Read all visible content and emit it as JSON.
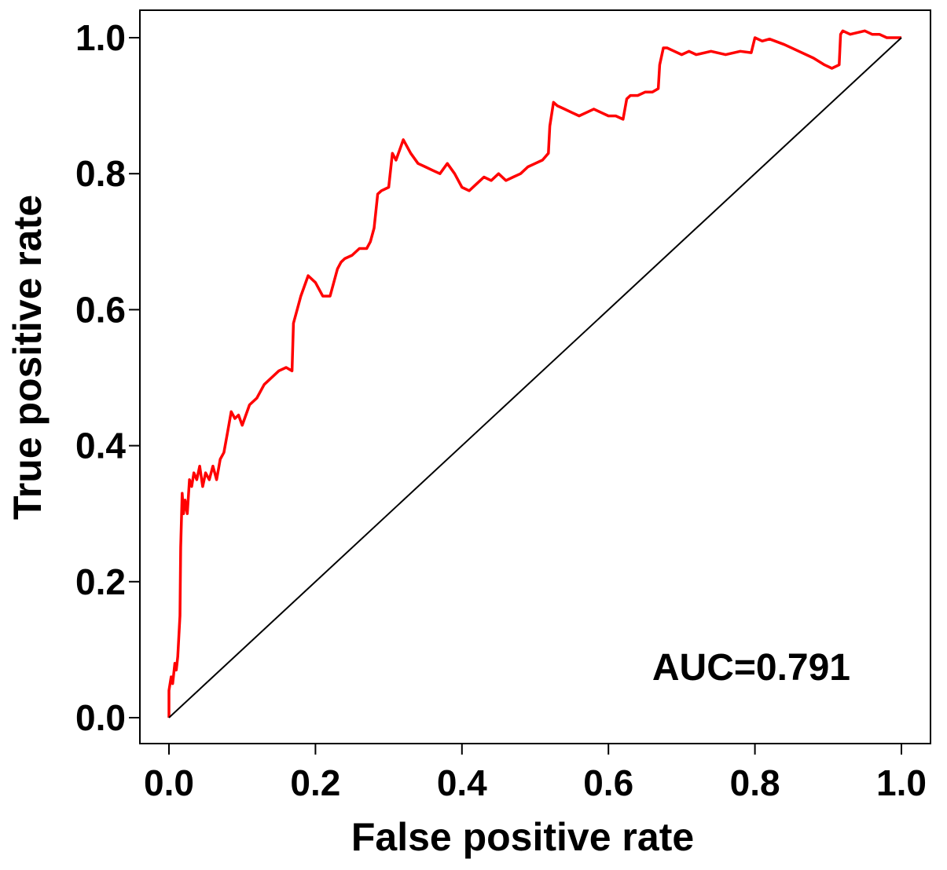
{
  "chart_data": {
    "type": "line",
    "title": "",
    "xlabel": "False positive rate",
    "ylabel": "True positive rate",
    "xlim": [
      0,
      1
    ],
    "ylim": [
      0,
      1
    ],
    "x_ticks": [
      "0.0",
      "0.2",
      "0.4",
      "0.6",
      "0.8",
      "1.0"
    ],
    "y_ticks": [
      "0.0",
      "0.2",
      "0.4",
      "0.6",
      "0.8",
      "1.0"
    ],
    "grid": false,
    "legend": "none",
    "annotation": "AUC=0.791",
    "series": [
      {
        "color": "#ff0000",
        "x": [
          0.0,
          0.0,
          0.003,
          0.005,
          0.008,
          0.01,
          0.012,
          0.015,
          0.016,
          0.018,
          0.02,
          0.022,
          0.025,
          0.028,
          0.031,
          0.034,
          0.038,
          0.042,
          0.046,
          0.05,
          0.055,
          0.06,
          0.065,
          0.07,
          0.075,
          0.08,
          0.085,
          0.09,
          0.095,
          0.1,
          0.11,
          0.12,
          0.13,
          0.14,
          0.15,
          0.16,
          0.168,
          0.17,
          0.175,
          0.18,
          0.19,
          0.2,
          0.21,
          0.22,
          0.225,
          0.23,
          0.235,
          0.24,
          0.25,
          0.26,
          0.27,
          0.275,
          0.28,
          0.285,
          0.29,
          0.3,
          0.305,
          0.31,
          0.32,
          0.33,
          0.34,
          0.35,
          0.36,
          0.37,
          0.38,
          0.39,
          0.4,
          0.41,
          0.42,
          0.43,
          0.44,
          0.45,
          0.46,
          0.47,
          0.48,
          0.49,
          0.5,
          0.51,
          0.518,
          0.52,
          0.525,
          0.53,
          0.54,
          0.55,
          0.56,
          0.57,
          0.58,
          0.59,
          0.6,
          0.61,
          0.62,
          0.625,
          0.63,
          0.64,
          0.65,
          0.66,
          0.668,
          0.67,
          0.675,
          0.68,
          0.69,
          0.7,
          0.71,
          0.72,
          0.74,
          0.76,
          0.78,
          0.795,
          0.8,
          0.81,
          0.82,
          0.84,
          0.86,
          0.88,
          0.895,
          0.905,
          0.915,
          0.917,
          0.92,
          0.93,
          0.95,
          0.96,
          0.97,
          0.98,
          0.99,
          1.0
        ],
        "y": [
          0.0,
          0.04,
          0.06,
          0.05,
          0.08,
          0.07,
          0.09,
          0.15,
          0.25,
          0.33,
          0.3,
          0.32,
          0.3,
          0.35,
          0.34,
          0.36,
          0.35,
          0.37,
          0.34,
          0.36,
          0.35,
          0.37,
          0.35,
          0.38,
          0.39,
          0.42,
          0.45,
          0.44,
          0.445,
          0.43,
          0.46,
          0.47,
          0.49,
          0.5,
          0.51,
          0.515,
          0.51,
          0.58,
          0.6,
          0.62,
          0.65,
          0.64,
          0.62,
          0.62,
          0.64,
          0.66,
          0.67,
          0.675,
          0.68,
          0.69,
          0.69,
          0.7,
          0.72,
          0.77,
          0.775,
          0.78,
          0.83,
          0.82,
          0.85,
          0.83,
          0.815,
          0.81,
          0.805,
          0.8,
          0.815,
          0.8,
          0.78,
          0.775,
          0.785,
          0.795,
          0.79,
          0.8,
          0.79,
          0.795,
          0.8,
          0.81,
          0.815,
          0.82,
          0.83,
          0.87,
          0.905,
          0.9,
          0.895,
          0.89,
          0.885,
          0.89,
          0.895,
          0.89,
          0.885,
          0.885,
          0.88,
          0.91,
          0.915,
          0.915,
          0.92,
          0.92,
          0.925,
          0.96,
          0.985,
          0.985,
          0.98,
          0.975,
          0.98,
          0.975,
          0.98,
          0.975,
          0.98,
          0.978,
          1.0,
          0.995,
          0.998,
          0.99,
          0.98,
          0.97,
          0.96,
          0.955,
          0.96,
          1.005,
          1.01,
          1.005,
          1.01,
          1.005,
          1.005,
          1.0,
          1.0,
          1.0
        ]
      },
      {
        "color": "#000000",
        "x": [
          0,
          1
        ],
        "y": [
          0,
          1
        ]
      }
    ]
  }
}
